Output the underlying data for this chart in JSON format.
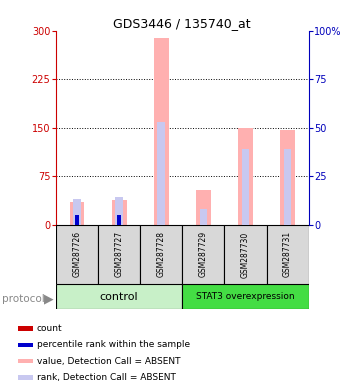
{
  "title": "GDS3446 / 135740_at",
  "samples": [
    "GSM287726",
    "GSM287727",
    "GSM287728",
    "GSM287729",
    "GSM287730",
    "GSM287731"
  ],
  "pink_values": [
    35,
    38,
    288,
    53,
    150,
    147
  ],
  "blue_pct_values": [
    13,
    14,
    53,
    8,
    39,
    39
  ],
  "red_values": [
    10,
    10,
    0,
    0,
    0,
    0
  ],
  "darkblue_pct_values": [
    5,
    5,
    0,
    0,
    0,
    0
  ],
  "ylim_left": [
    0,
    300
  ],
  "ylim_right": [
    0,
    100
  ],
  "yticks_left": [
    0,
    75,
    150,
    225,
    300
  ],
  "yticks_right": [
    0,
    25,
    50,
    75,
    100
  ],
  "ytick_labels_right": [
    "0",
    "25",
    "50",
    "75",
    "100%"
  ],
  "legend_items": [
    {
      "color": "#cc0000",
      "label": "count"
    },
    {
      "color": "#0000cc",
      "label": "percentile rank within the sample"
    },
    {
      "color": "#ffb0b0",
      "label": "value, Detection Call = ABSENT"
    },
    {
      "color": "#c8c8f0",
      "label": "rank, Detection Call = ABSENT"
    }
  ],
  "pink_color": "#ffb0b0",
  "blue_color": "#c8c8f0",
  "red_color": "#cc0000",
  "darkblue_color": "#0000cc",
  "left_axis_color": "#cc0000",
  "right_axis_color": "#0000bb",
  "grid_color": "#000000",
  "ctrl_color": "#c8f0c8",
  "stat3_color": "#44dd44"
}
